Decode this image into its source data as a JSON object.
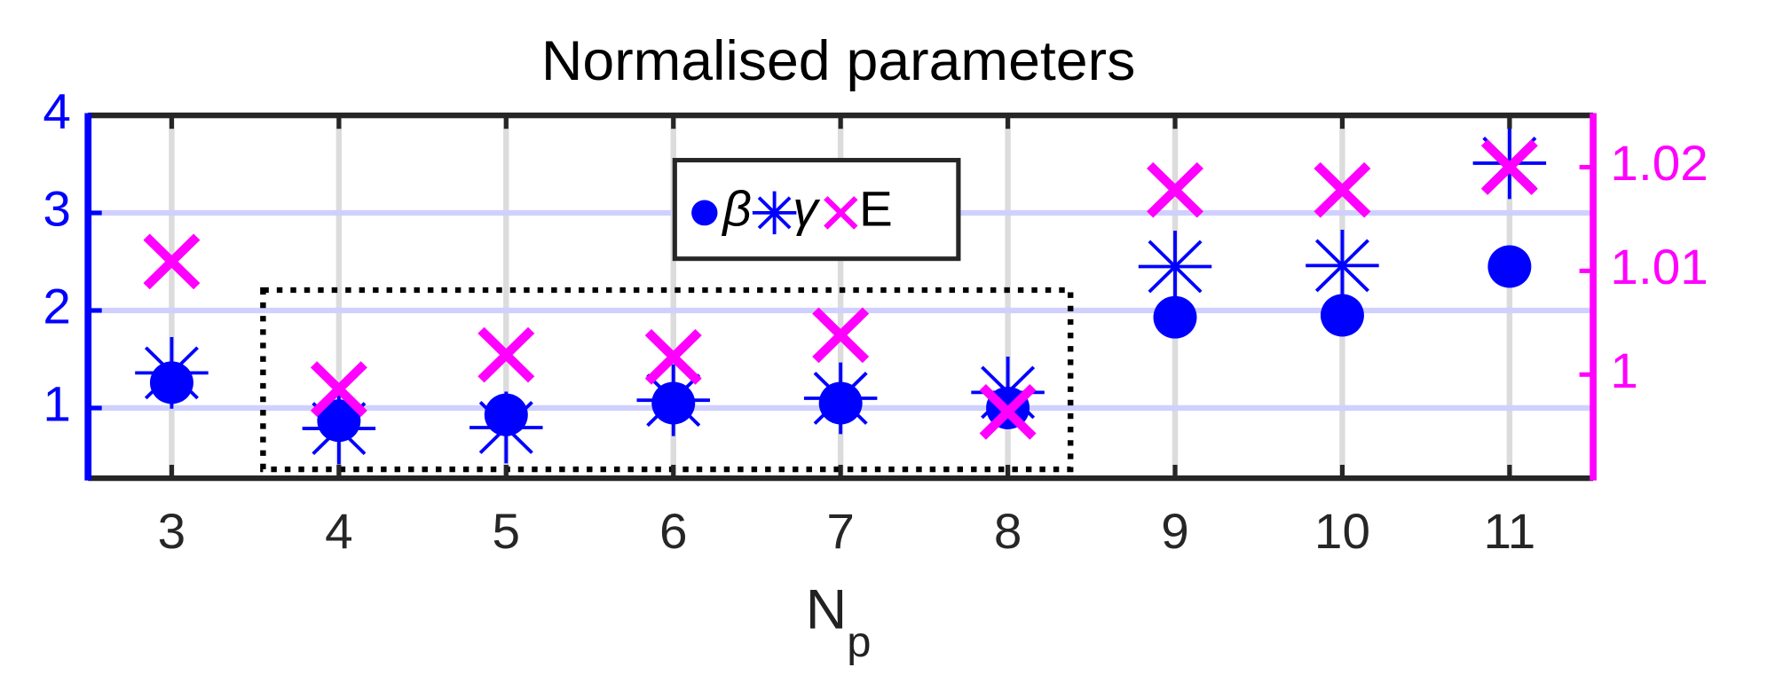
{
  "chart_data": {
    "type": "scatter",
    "title": "Normalised parameters",
    "x_label": "N",
    "x_label_subscript": "p",
    "x": [
      3,
      4,
      5,
      6,
      7,
      8,
      9,
      10,
      11
    ],
    "xlim": [
      2.5,
      11.5
    ],
    "xticks": [
      3,
      4,
      5,
      6,
      7,
      8,
      9,
      10,
      11
    ],
    "ylim": [
      0.28,
      4
    ],
    "yticks": [
      1,
      2,
      3,
      4
    ],
    "y2lim": [
      0.99,
      1.025
    ],
    "y2ticks": [
      1,
      1.01,
      1.02
    ],
    "grid": true,
    "legend_position": "top",
    "series": [
      {
        "name": "β",
        "color": "#0000ff",
        "marker": "circle",
        "values": [
          1.26,
          0.87,
          0.93,
          1.05,
          1.05,
          1.0,
          1.93,
          1.95,
          2.45
        ]
      },
      {
        "name": "γ",
        "color": "#0000ff",
        "marker": "asterisk",
        "values": [
          1.36,
          0.79,
          0.8,
          1.08,
          1.1,
          1.16,
          2.45,
          2.46,
          3.51
        ]
      },
      {
        "name": "E",
        "color": "#ff00ff",
        "marker": "cross",
        "axis": "y2",
        "values": [
          1.0109,
          0.9986,
          1.0019,
          1.0017,
          1.0038,
          0.9964,
          1.0178,
          1.0178,
          1.02
        ]
      }
    ]
  }
}
